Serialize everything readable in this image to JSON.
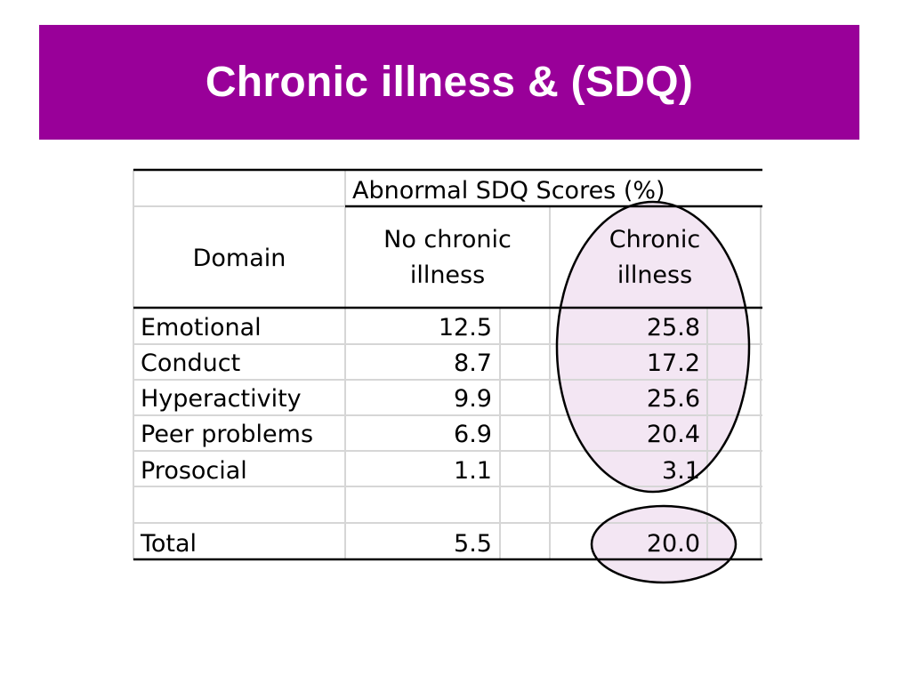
{
  "slide": {
    "title": "Chronic illness & (SDQ)"
  },
  "table": {
    "group_header": "Abnormal SDQ Scores (%)",
    "domain_header": "Domain",
    "col1_header_line1": "No chronic",
    "col1_header_line2": "illness",
    "col2_header_line1": "Chronic",
    "col2_header_line2": "illness",
    "rows": [
      {
        "domain": "Emotional",
        "no_chronic": "12.5",
        "chronic": "25.8"
      },
      {
        "domain": "Conduct",
        "no_chronic": "8.7",
        "chronic": "17.2"
      },
      {
        "domain": "Hyperactivity",
        "no_chronic": "9.9",
        "chronic": "25.6"
      },
      {
        "domain": "Peer problems",
        "no_chronic": "6.9",
        "chronic": "20.4"
      },
      {
        "domain": "Prosocial",
        "no_chronic": "1.1",
        "chronic": "3.1"
      }
    ],
    "total": {
      "domain": "Total",
      "no_chronic": "5.5",
      "chronic": "20.0"
    }
  },
  "colors": {
    "title_bar": "#990099",
    "title_text": "#ffffff",
    "highlight_fill": "#f3e6f3"
  }
}
